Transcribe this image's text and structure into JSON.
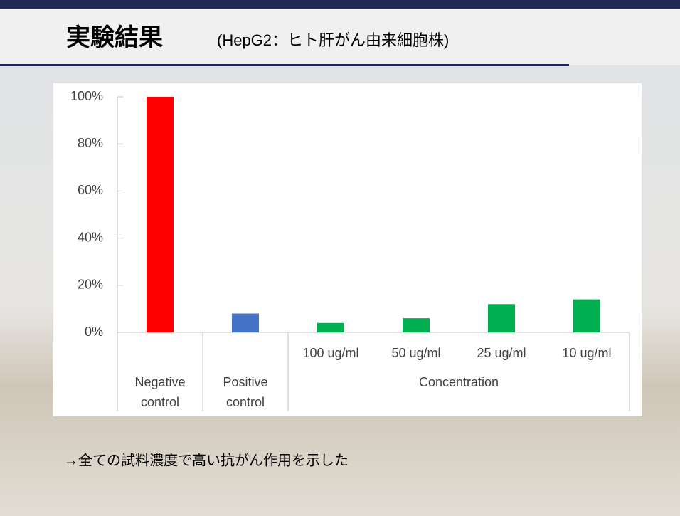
{
  "chart_data": {
    "type": "bar",
    "title": "実験結果",
    "subtitle": "(HepG2：ヒト肝がん由来細胞株)",
    "categories": [
      "Negative control",
      "Positive control",
      "100 ug/ml",
      "50 ug/ml",
      "25 ug/ml",
      "10 ug/ml"
    ],
    "group_of": [
      null,
      null,
      "Concentration",
      "Concentration",
      "Concentration",
      "Concentration"
    ],
    "values": [
      100,
      8,
      4,
      6,
      12,
      14
    ],
    "colors": [
      "#ff0000",
      "#4472c4",
      "#00b050",
      "#00b050",
      "#00b050",
      "#00b050"
    ],
    "ylim": [
      0,
      100
    ],
    "yticks": [
      {
        "value": 0,
        "label": "0%"
      },
      {
        "value": 20,
        "label": "20%"
      },
      {
        "value": 40,
        "label": "40%"
      },
      {
        "value": 60,
        "label": "60%"
      },
      {
        "value": 80,
        "label": "80%"
      },
      {
        "value": 100,
        "label": "100%"
      }
    ],
    "footnote": "→全ての試料濃度で高い抗がん作用を示した"
  }
}
